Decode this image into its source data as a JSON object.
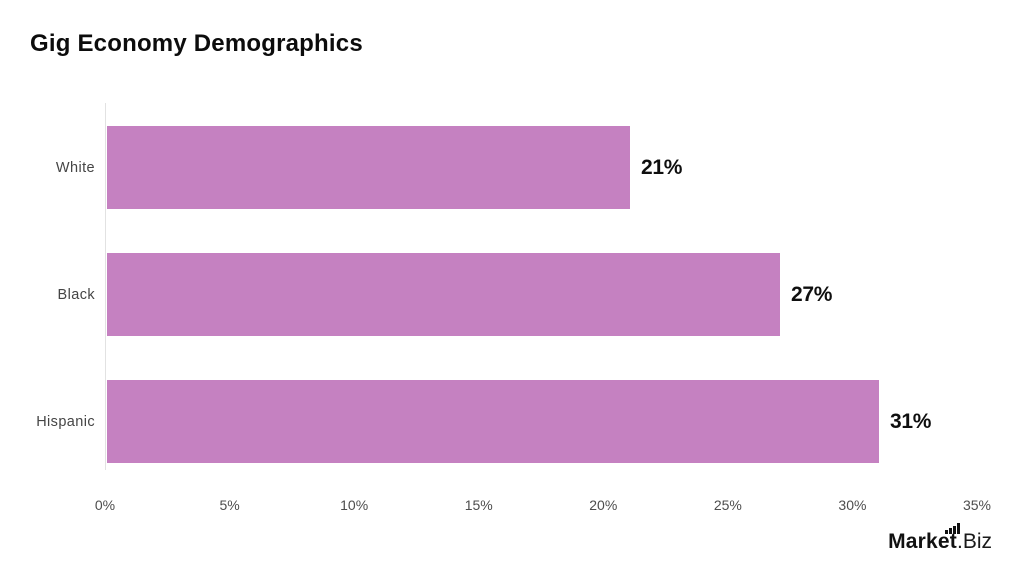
{
  "chart_data": {
    "type": "bar",
    "orientation": "horizontal",
    "title": "Gig Economy Demographics",
    "categories": [
      "White",
      "Black",
      "Hispanic"
    ],
    "values": [
      21,
      27,
      31
    ],
    "value_labels": [
      "21%",
      "27%",
      "31%"
    ],
    "xlabel": "",
    "ylabel": "",
    "xlim": [
      0,
      35
    ],
    "x_tick_values": [
      0,
      5,
      10,
      15,
      20,
      25,
      30,
      35
    ],
    "x_tick_labels": [
      "0%",
      "5%",
      "10%",
      "15%",
      "20%",
      "25%",
      "30%",
      "35%"
    ],
    "bar_color": "#c581c1",
    "grid": false,
    "legend": false
  },
  "colors": {
    "background": "#ffffff",
    "bar": "#c581c1",
    "title_text": "#0c0c0c",
    "value_text": "#0f0f0f",
    "axis_text": "#4d4d4d",
    "axis_line": "#e2e2e2"
  },
  "branding": {
    "logo_bold": "Market",
    "logo_light": ".Biz",
    "logo_icon": "mini-bar-chart-icon"
  }
}
